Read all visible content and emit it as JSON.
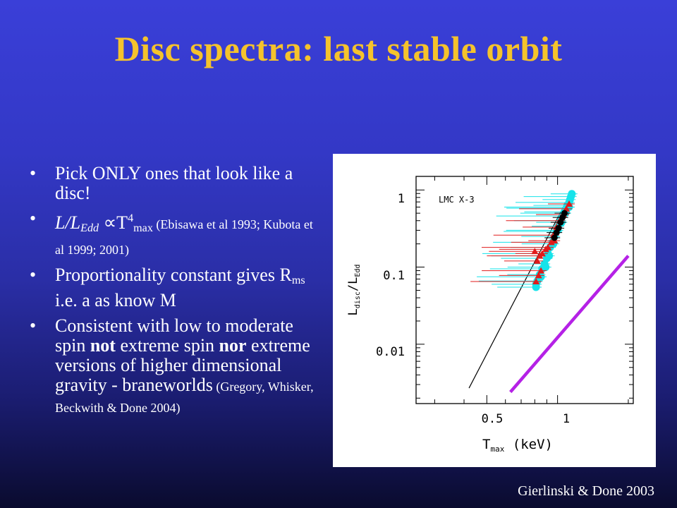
{
  "slide": {
    "title": "Disc spectra: last stable orbit",
    "bullets": [
      {
        "text": "Pick ONLY ones that look like a disc!"
      },
      {
        "l": "L/L",
        "edd": "Edd",
        "prop": " ∝T",
        "four": "4",
        "max": "max",
        "cite": " (Ebisawa et al 1993; Kubota et al 1999; 2001)"
      },
      {
        "a": "Proportionality constant gives R",
        "ms": "ms",
        "b": " i.e. a as know M"
      },
      {
        "a": "Consistent with low to moderate spin ",
        "not": "not",
        "b": " extreme spin ",
        "nor": "nor",
        "c": " extreme versions of higher dimensional gravity - braneworlds",
        "cite": " (Gregory, Whisker, Beckwith & Done 2004)"
      }
    ],
    "footer_citation": "Gierlinski & Done 2003"
  },
  "figure": {
    "label": "LMC X-3",
    "ylabel": {
      "main": "L",
      "sub1": "disc",
      "slash": "/L",
      "sub2": "Edd"
    },
    "xlabel": {
      "main": "T",
      "sub": "max",
      "unit": " (keV)"
    },
    "yticks": [
      "1",
      "0.1",
      "0.01"
    ],
    "xticks": [
      "0.5",
      "1"
    ]
  },
  "chart_data": {
    "type": "scatter",
    "title": "LMC X-3",
    "xlabel": "T_max (keV)",
    "ylabel": "L_disc/L_Edd",
    "xscale": "log",
    "yscale": "log",
    "xlim": [
      0.25,
      2.1
    ],
    "ylim": [
      0.0017,
      1.5
    ],
    "xticks": [
      0.5,
      1
    ],
    "yticks": [
      0.01,
      0.1,
      1
    ],
    "colors": {
      "cyan": "#16e3ea",
      "red": "#e01b1b",
      "black": "#000000",
      "magenta": "#b521e6"
    },
    "lines": [
      {
        "color": "#000000",
        "points": [
          [
            0.42,
            0.0027
          ],
          [
            1.15,
            0.98
          ]
        ]
      },
      {
        "color": "#b521e6",
        "points": [
          [
            0.63,
            0.0024
          ],
          [
            2.0,
            0.14
          ]
        ]
      }
    ],
    "series": [
      {
        "marker": "circle",
        "color": "#16e3ea",
        "points": [
          [
            1.15,
            0.89
          ],
          [
            1.14,
            0.82
          ],
          [
            1.13,
            0.75
          ],
          [
            1.12,
            0.69
          ],
          [
            1.1,
            0.63
          ],
          [
            1.09,
            0.58
          ],
          [
            1.07,
            0.52
          ],
          [
            1.05,
            0.46
          ],
          [
            1.03,
            0.4
          ],
          [
            1.01,
            0.34
          ],
          [
            0.99,
            0.29
          ],
          [
            0.97,
            0.25
          ],
          [
            0.95,
            0.21
          ],
          [
            0.93,
            0.18
          ],
          [
            0.91,
            0.15
          ],
          [
            0.9,
            0.13
          ],
          [
            0.88,
            0.11
          ],
          [
            0.86,
            0.095
          ],
          [
            0.84,
            0.08
          ],
          [
            0.82,
            0.066
          ],
          [
            0.81,
            0.055
          ],
          [
            1.12,
            0.6
          ],
          [
            1.08,
            0.5
          ],
          [
            1.04,
            0.38
          ],
          [
            1.0,
            0.3
          ],
          [
            0.96,
            0.2
          ],
          [
            0.92,
            0.14
          ],
          [
            0.89,
            0.1
          ],
          [
            0.85,
            0.075
          ],
          [
            0.81,
            0.06
          ]
        ]
      },
      {
        "marker": "triangle",
        "color": "#e01b1b",
        "points": [
          [
            1.12,
            0.66
          ],
          [
            1.09,
            0.57
          ],
          [
            1.06,
            0.48
          ],
          [
            1.02,
            0.4
          ],
          [
            0.99,
            0.33
          ],
          [
            0.96,
            0.26
          ],
          [
            0.94,
            0.21
          ],
          [
            0.91,
            0.18
          ],
          [
            0.89,
            0.17
          ],
          [
            0.86,
            0.15
          ],
          [
            0.84,
            0.14
          ],
          [
            0.82,
            0.12
          ],
          [
            0.85,
            0.09
          ],
          [
            0.83,
            0.078
          ],
          [
            0.81,
            0.065
          ],
          [
            0.8,
            0.16
          ],
          [
            0.97,
            0.22
          ]
        ]
      },
      {
        "marker": "circle",
        "color": "#000000",
        "points": [
          [
            1.07,
            0.5
          ],
          [
            1.05,
            0.44
          ],
          [
            1.03,
            0.38
          ],
          [
            1.01,
            0.32
          ],
          [
            0.99,
            0.28
          ],
          [
            0.97,
            0.24
          ]
        ]
      }
    ]
  }
}
